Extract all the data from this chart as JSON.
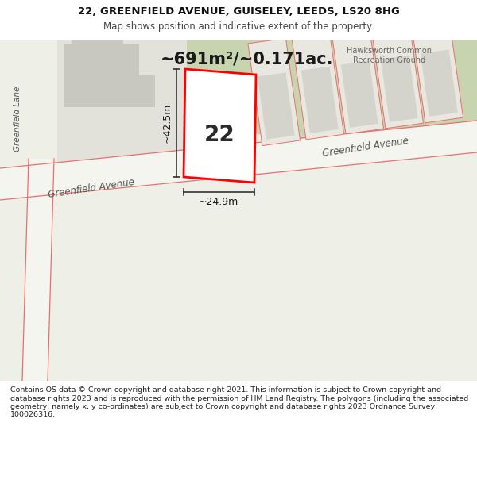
{
  "title_line1": "22, GREENFIELD AVENUE, GUISELEY, LEEDS, LS20 8HG",
  "title_line2": "Map shows position and indicative extent of the property.",
  "area_label": "~691m²/~0.171ac.",
  "label_42": "~42.5m",
  "label_249": "~24.9m",
  "number_label": "22",
  "hawksworth_label": "Hawksworth Common\nRecreation Ground",
  "greenfield_lane_label": "Greenfield Lane",
  "greenfield_avenue_label1": "Greenfield Avenue",
  "greenfield_avenue_label2": "Greenfield Avenue",
  "footer_text": "Contains OS data © Crown copyright and database right 2021. This information is subject to Crown copyright and database rights 2023 and is reproduced with the permission of HM Land Registry. The polygons (including the associated geometry, namely x, y co-ordinates) are subject to Crown copyright and database rights 2023 Ordnance Survey 100026316.",
  "map_bg": "#eef0e8",
  "green_area_color": "#c8d4b0",
  "plot_fill": "#ffffff",
  "plot_outline_color": "#ff0000",
  "dim_line_color": "#333333",
  "road_fill": "#f5f5f0",
  "building_fill": "#d4d4cc",
  "building_fill2": "#c8c8c0",
  "boundary_red": "#e87070",
  "label_color": "#555555",
  "footer_color": "#222222",
  "title_color": "#111111"
}
